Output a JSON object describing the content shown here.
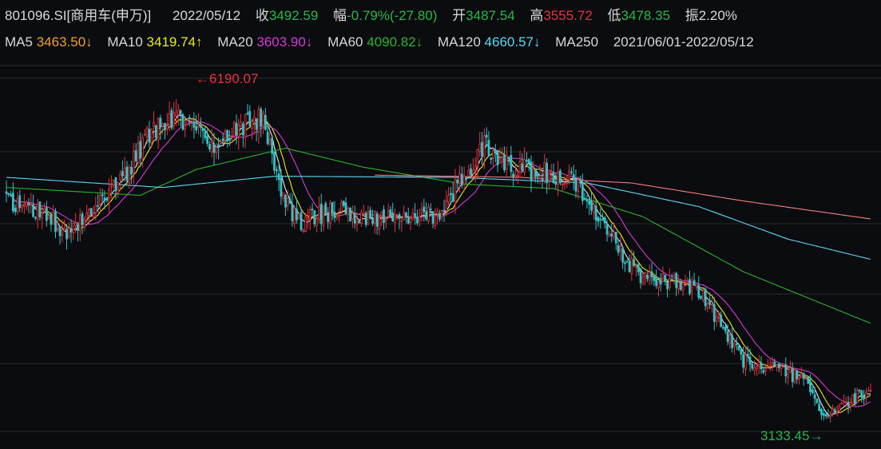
{
  "header": {
    "code": "801096.SI[商用车(申万)]",
    "date": "2022/05/12",
    "close_label": "收",
    "close_value": "3492.59",
    "change_label": "幅",
    "change_value": "-0.79%(-27.80)",
    "open_label": "开",
    "open_value": "3487.54",
    "high_label": "高",
    "high_value": "3555.72",
    "low_label": "低",
    "low_value": "3478.35",
    "amp_label": "振",
    "amp_value": "2.20%"
  },
  "ma_row": {
    "ma5_label": "MA5",
    "ma5_value": "3463.50↓",
    "ma10_label": "MA10",
    "ma10_value": "3419.74↑",
    "ma20_label": "MA20",
    "ma20_value": "3603.90↓",
    "ma60_label": "MA60",
    "ma60_value": "4090.82↓",
    "ma120_label": "MA120",
    "ma120_value": "4660.57↓",
    "ma250_label": "MA250",
    "range_start": "2021/06/01",
    "range_sep": "-",
    "range_end": "2022/05/12"
  },
  "annotations": {
    "max_label": "←6190.07",
    "min_label": "3133.45→"
  },
  "colors": {
    "up": "#e8323c",
    "down": "#35c2c5",
    "ma5": "#e8e8e8",
    "ma10": "#e8e82c",
    "ma20": "#d63bd6",
    "ma60": "#2bb52b",
    "ma120": "#5fd7f0",
    "ma250": "#f08080",
    "header_green": "#28b84a",
    "header_red": "#e8323c",
    "grid": "#2a2a2a"
  },
  "chart_data": {
    "type": "candlestick",
    "start_date": "2021/06/01",
    "end_date": "2022/05/12",
    "ylim": [
      3000,
      6400
    ],
    "grid": true,
    "max_point": {
      "value": 6190.07
    },
    "min_point": {
      "value": 3133.45
    },
    "last_bar": {
      "open": 3487.54,
      "high": 3555.72,
      "low": 3478.35,
      "close": 3492.59
    },
    "ma_last": {
      "MA5": 3463.5,
      "MA10": 3419.74,
      "MA20": 3603.9,
      "MA60": 4090.82,
      "MA120": 4660.57
    },
    "close_path": [
      [
        0,
        5170
      ],
      [
        10,
        5120
      ],
      [
        20,
        5020
      ],
      [
        27,
        4900
      ],
      [
        32,
        5000
      ],
      [
        40,
        5180
      ],
      [
        50,
        5300
      ],
      [
        55,
        5480
      ],
      [
        62,
        5720
      ],
      [
        70,
        5880
      ],
      [
        78,
        5920
      ],
      [
        85,
        5780
      ],
      [
        92,
        5700
      ],
      [
        100,
        5750
      ],
      [
        108,
        5880
      ],
      [
        115,
        5950
      ],
      [
        120,
        5520
      ],
      [
        125,
        5150
      ],
      [
        132,
        4980
      ],
      [
        140,
        5050
      ],
      [
        150,
        5130
      ],
      [
        160,
        5010
      ],
      [
        170,
        5040
      ],
      [
        180,
        5060
      ],
      [
        188,
        5030
      ],
      [
        195,
        5120
      ],
      [
        202,
        5310
      ],
      [
        210,
        5560
      ],
      [
        215,
        5700
      ],
      [
        220,
        5520
      ],
      [
        228,
        5480
      ],
      [
        235,
        5450
      ],
      [
        245,
        5430
      ],
      [
        255,
        5330
      ],
      [
        262,
        5150
      ],
      [
        270,
        4900
      ],
      [
        277,
        4650
      ],
      [
        285,
        4500
      ],
      [
        292,
        4480
      ],
      [
        300,
        4460
      ],
      [
        310,
        4380
      ],
      [
        318,
        4150
      ],
      [
        325,
        3900
      ],
      [
        330,
        3750
      ],
      [
        338,
        3720
      ],
      [
        345,
        3700
      ],
      [
        352,
        3630
      ],
      [
        360,
        3520
      ],
      [
        366,
        3240
      ],
      [
        372,
        3300
      ],
      [
        378,
        3420
      ],
      [
        384,
        3470
      ],
      [
        387,
        3492.59
      ]
    ],
    "ma_paths": {
      "MA60": [
        [
          0,
          5300
        ],
        [
          60,
          5230
        ],
        [
          85,
          5460
        ],
        [
          125,
          5650
        ],
        [
          160,
          5480
        ],
        [
          205,
          5330
        ],
        [
          245,
          5290
        ],
        [
          285,
          5040
        ],
        [
          330,
          4550
        ],
        [
          387,
          4090.82
        ]
      ],
      "MA120": [
        [
          0,
          5390
        ],
        [
          70,
          5300
        ],
        [
          120,
          5400
        ],
        [
          200,
          5390
        ],
        [
          260,
          5340
        ],
        [
          310,
          5130
        ],
        [
          350,
          4840
        ],
        [
          387,
          4660.57
        ]
      ],
      "MA250": [
        [
          165,
          5410
        ],
        [
          230,
          5390
        ],
        [
          280,
          5340
        ],
        [
          330,
          5180
        ],
        [
          387,
          5020
        ]
      ]
    }
  }
}
